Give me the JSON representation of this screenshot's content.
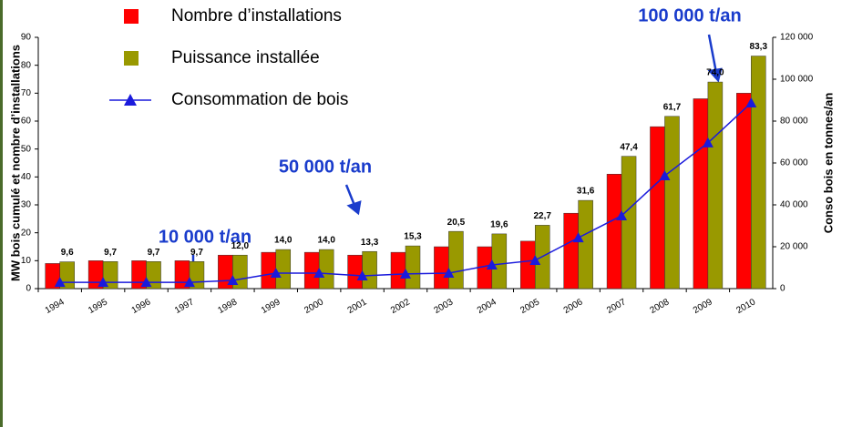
{
  "chart_data": {
    "type": "bar",
    "categories": [
      "1994",
      "1995",
      "1996",
      "1997",
      "1998",
      "1999",
      "2000",
      "2001",
      "2002",
      "2003",
      "2004",
      "2005",
      "2006",
      "2007",
      "2008",
      "2009",
      "2010"
    ],
    "series": [
      {
        "name": "Nombre d’installations",
        "color": "#ff0000",
        "values": [
          9,
          10,
          10,
          10,
          12,
          13,
          13,
          12,
          13,
          15,
          15,
          17,
          27,
          41,
          58,
          68,
          70
        ]
      },
      {
        "name": "Puissance installée",
        "color": "#999900",
        "values": [
          9.6,
          9.7,
          9.7,
          9.7,
          12.0,
          14.0,
          14.0,
          13.3,
          15.3,
          20.5,
          19.6,
          22.7,
          31.6,
          47.4,
          61.7,
          74.0,
          83.3
        ],
        "value_labels": [
          "9,6",
          "9,7",
          "9,7",
          "9,7",
          "12,0",
          "14,0",
          "14,0",
          "13,3",
          "15,3",
          "20,5",
          "19,6",
          "22,7",
          "31,6",
          "47,4",
          "61,7",
          "74,0",
          "83,3"
        ]
      },
      {
        "name": "Consommation de bois",
        "type": "line",
        "axis": "y2",
        "color": "#1a1adc",
        "values": [
          3000,
          3000,
          3000,
          3000,
          3900,
          7400,
          7400,
          6100,
          7000,
          7400,
          11300,
          13500,
          24300,
          34800,
          53900,
          69600,
          88700
        ]
      }
    ],
    "ylabel": "MW bois cumulé  et  nombre d’installations",
    "y2label": "Conso bois en tonnes/an",
    "ylim": [
      0,
      90
    ],
    "yticks": [
      0,
      10,
      20,
      30,
      40,
      50,
      60,
      70,
      80,
      90
    ],
    "y2lim": [
      0,
      120000
    ],
    "y2ticks": [
      0,
      {
        "value": 20000,
        "label": "20 000"
      },
      {
        "value": 40000,
        "label": "40 000"
      },
      {
        "value": 60000,
        "label": "60 000"
      },
      {
        "value": 80000,
        "label": "80 000"
      },
      {
        "value": 100000,
        "label": "100 000"
      },
      {
        "value": 120000,
        "label": "120 000"
      }
    ],
    "annotations": [
      "10 000 t/an",
      "50 000 t/an",
      "100 000 t/an"
    ]
  }
}
